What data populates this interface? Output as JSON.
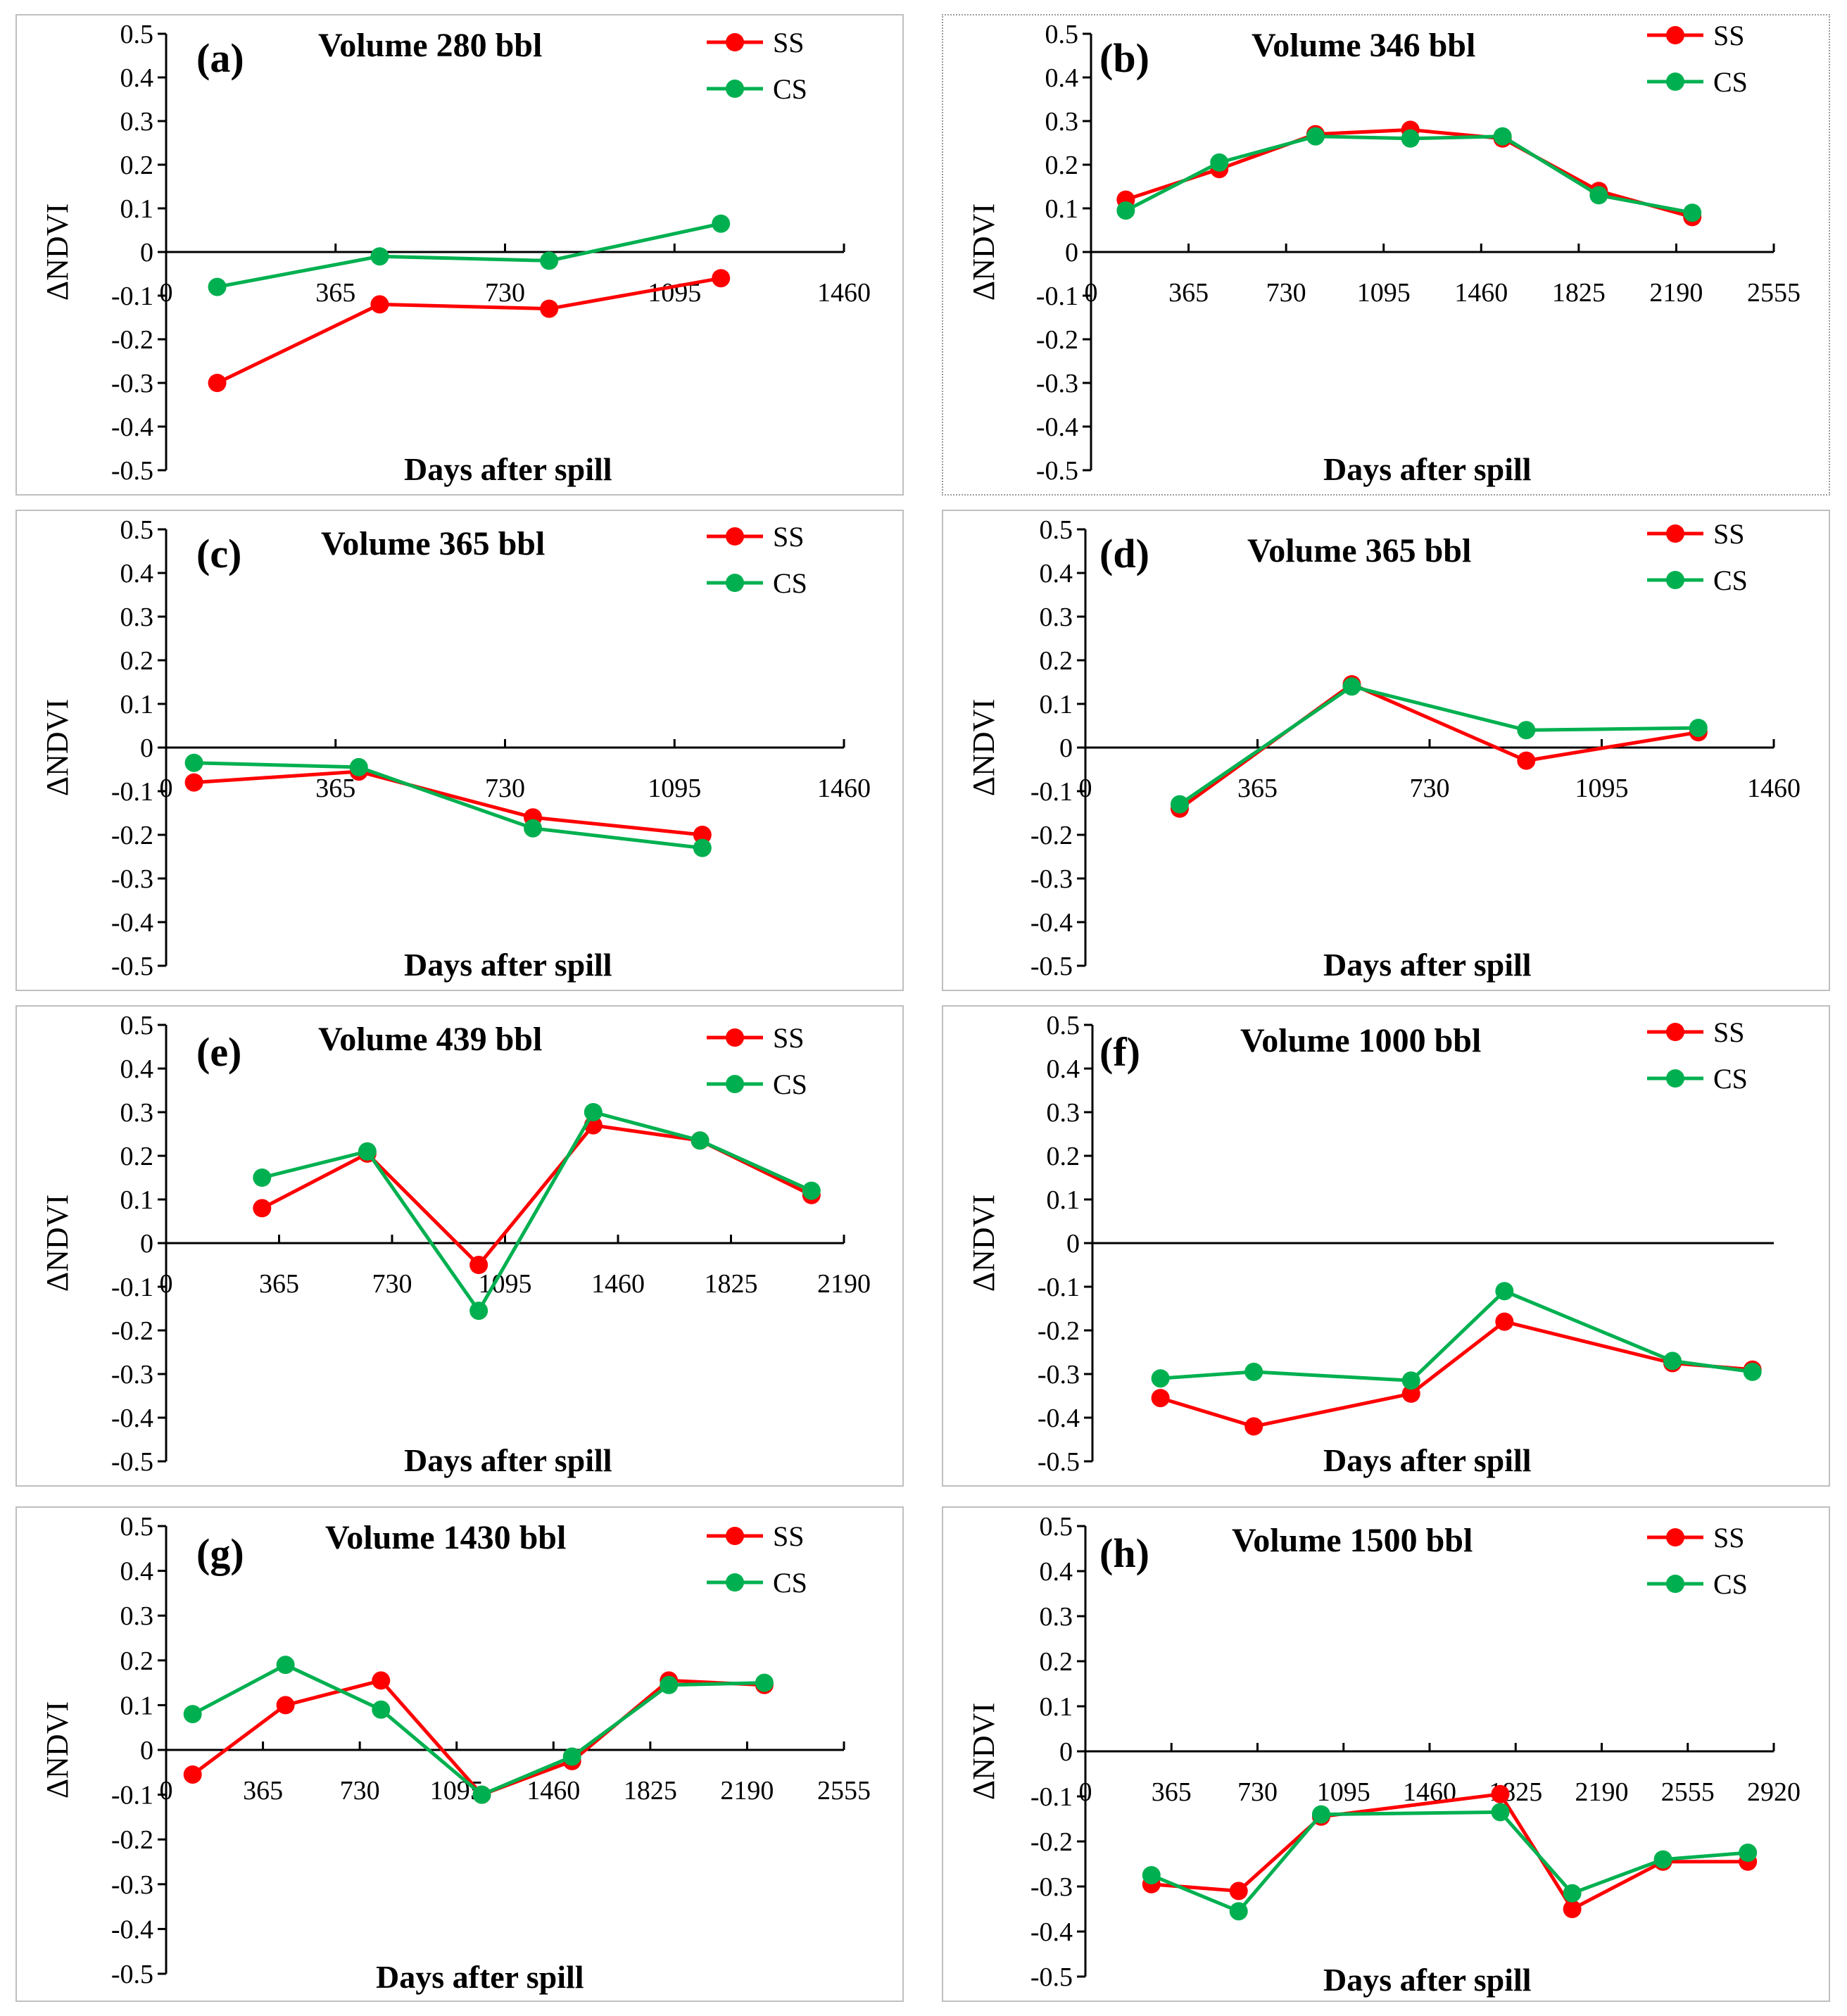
{
  "chart_data": [
    {
      "type": "line",
      "panel": "(a)",
      "title": "Volume 280 bbl",
      "xlabel": "Days after spill",
      "ylabel": "ΔNDVI",
      "xlim": [
        0,
        1460
      ],
      "ylim": [
        -0.5,
        0.5
      ],
      "xticks": [
        "0",
        "365",
        "730",
        "1095",
        "1460"
      ],
      "yticks": [
        "0.5",
        "0.4",
        "0.3",
        "0.2",
        "0.1",
        "0",
        "-0.1",
        "-0.2",
        "-0.3",
        "-0.4",
        "-0.5"
      ],
      "legend": "top-right",
      "series": [
        {
          "name": "SS",
          "color": "#ff0000",
          "x": [
            110,
            460,
            825,
            1195
          ],
          "y": [
            -0.3,
            -0.12,
            -0.13,
            -0.06
          ]
        },
        {
          "name": "CS",
          "color": "#00b050",
          "x": [
            110,
            460,
            825,
            1195
          ],
          "y": [
            -0.08,
            -0.01,
            -0.02,
            0.065
          ]
        }
      ]
    },
    {
      "type": "line",
      "panel": "(b)",
      "title": "Volume 346 bbl",
      "xlabel": "Days after spill",
      "ylabel": "ΔNDVI",
      "xlim": [
        0,
        2555
      ],
      "ylim": [
        -0.5,
        0.5
      ],
      "xticks": [
        "0",
        "365",
        "730",
        "1095",
        "1460",
        "1825",
        "2190",
        "2555"
      ],
      "yticks": [
        "0.5",
        "0.4",
        "0.3",
        "0.2",
        "0.1",
        "0",
        "-0.1",
        "-0.2",
        "-0.3",
        "-0.4",
        "-0.5"
      ],
      "legend": "top-right",
      "series": [
        {
          "name": "SS",
          "color": "#ff0000",
          "x": [
            130,
            480,
            840,
            1195,
            1540,
            1900,
            2250
          ],
          "y": [
            0.12,
            0.19,
            0.27,
            0.28,
            0.26,
            0.14,
            0.08
          ]
        },
        {
          "name": "CS",
          "color": "#00b050",
          "x": [
            130,
            480,
            840,
            1195,
            1540,
            1900,
            2250
          ],
          "y": [
            0.095,
            0.205,
            0.265,
            0.26,
            0.265,
            0.13,
            0.09
          ]
        }
      ]
    },
    {
      "type": "line",
      "panel": "(c)",
      "title": "Volume 365 bbl",
      "xlabel": "Days after spill",
      "ylabel": "ΔNDVI",
      "xlim": [
        0,
        1460
      ],
      "ylim": [
        -0.5,
        0.5
      ],
      "xticks": [
        "0",
        "365",
        "730",
        "1095",
        "1460"
      ],
      "yticks": [
        "0.5",
        "0.4",
        "0.3",
        "0.2",
        "0.1",
        "0",
        "-0.1",
        "-0.2",
        "-0.3",
        "-0.4",
        "-0.5"
      ],
      "legend": "top-right",
      "series": [
        {
          "name": "SS",
          "color": "#ff0000",
          "x": [
            60,
            415,
            790,
            1155
          ],
          "y": [
            -0.08,
            -0.055,
            -0.16,
            -0.2
          ]
        },
        {
          "name": "CS",
          "color": "#00b050",
          "x": [
            60,
            415,
            790,
            1155
          ],
          "y": [
            -0.035,
            -0.045,
            -0.185,
            -0.23
          ]
        }
      ]
    },
    {
      "type": "line",
      "panel": "(d)",
      "title": "Volume 365 bbl",
      "xlabel": "Days after spill",
      "ylabel": "ΔNDVI",
      "xlim": [
        0,
        1460
      ],
      "ylim": [
        -0.5,
        0.5
      ],
      "xticks": [
        "0",
        "365",
        "730",
        "1095",
        "1460"
      ],
      "yticks": [
        "0.5",
        "0.4",
        "0.3",
        "0.2",
        "0.1",
        "0",
        "-0.1",
        "-0.2",
        "-0.3",
        "-0.4",
        "-0.5"
      ],
      "legend": "top-right",
      "series": [
        {
          "name": "SS",
          "color": "#ff0000",
          "x": [
            200,
            565,
            935,
            1300
          ],
          "y": [
            -0.14,
            0.145,
            -0.03,
            0.035
          ]
        },
        {
          "name": "CS",
          "color": "#00b050",
          "x": [
            200,
            565,
            935,
            1300
          ],
          "y": [
            -0.13,
            0.14,
            0.04,
            0.045
          ]
        }
      ]
    },
    {
      "type": "line",
      "panel": "(e)",
      "title": "Volume 439 bbl",
      "xlabel": "Days after spill",
      "ylabel": "ΔNDVI",
      "xlim": [
        0,
        2190
      ],
      "ylim": [
        -0.5,
        0.5
      ],
      "xticks": [
        "0",
        "365",
        "730",
        "1095",
        "1460",
        "1825",
        "2190"
      ],
      "yticks": [
        "0.5",
        "0.4",
        "0.3",
        "0.2",
        "0.1",
        "0",
        "-0.1",
        "-0.2",
        "-0.3",
        "-0.4",
        "-0.5"
      ],
      "legend": "top-right",
      "series": [
        {
          "name": "SS",
          "color": "#ff0000",
          "x": [
            310,
            650,
            1010,
            1380,
            1725,
            2085
          ],
          "y": [
            0.08,
            0.205,
            -0.05,
            0.27,
            0.235,
            0.11
          ]
        },
        {
          "name": "CS",
          "color": "#00b050",
          "x": [
            310,
            650,
            1010,
            1380,
            1725,
            2085
          ],
          "y": [
            0.15,
            0.21,
            -0.155,
            0.3,
            0.235,
            0.12
          ]
        }
      ]
    },
    {
      "type": "line",
      "panel": "(f)",
      "title": "Volume 1000 bbl",
      "xlabel": "Days after spill",
      "ylabel": "ΔNDVI",
      "xlim": [
        0,
        2555
      ],
      "ylim": [
        -0.5,
        0.5
      ],
      "xticks": [],
      "yticks": [
        "0.5",
        "0.4",
        "0.3",
        "0.2",
        "0.1",
        "0",
        "-0.1",
        "-0.2",
        "-0.3",
        "-0.4",
        "-0.5"
      ],
      "legend": "top-right",
      "series": [
        {
          "name": "SS",
          "color": "#ff0000",
          "x": [
            255,
            605,
            1195,
            1545,
            2175,
            2475
          ],
          "y": [
            -0.355,
            -0.42,
            -0.345,
            -0.18,
            -0.275,
            -0.29
          ]
        },
        {
          "name": "CS",
          "color": "#00b050",
          "x": [
            255,
            605,
            1195,
            1545,
            2175,
            2475
          ],
          "y": [
            -0.31,
            -0.295,
            -0.315,
            -0.11,
            -0.27,
            -0.295
          ]
        }
      ]
    },
    {
      "type": "line",
      "panel": "(g)",
      "title": "Volume 1430 bbl",
      "xlabel": "Days after spill",
      "ylabel": "ΔNDVI",
      "xlim": [
        0,
        2555
      ],
      "ylim": [
        -0.5,
        0.5
      ],
      "xticks": [
        "0",
        "365",
        "730",
        "1095",
        "1460",
        "1825",
        "2190",
        "2555"
      ],
      "yticks": [
        "0.5",
        "0.4",
        "0.3",
        "0.2",
        "0.1",
        "0",
        "-0.1",
        "-0.2",
        "-0.3",
        "-0.4",
        "-0.5"
      ],
      "legend": "top-right",
      "series": [
        {
          "name": "SS",
          "color": "#ff0000",
          "x": [
            100,
            450,
            810,
            1190,
            1530,
            1895,
            2255
          ],
          "y": [
            -0.055,
            0.1,
            0.155,
            -0.1,
            -0.025,
            0.155,
            0.145
          ]
        },
        {
          "name": "CS",
          "color": "#00b050",
          "x": [
            100,
            450,
            810,
            1190,
            1530,
            1895,
            2255
          ],
          "y": [
            0.08,
            0.19,
            0.09,
            -0.1,
            -0.015,
            0.145,
            0.15
          ]
        }
      ]
    },
    {
      "type": "line",
      "panel": "(h)",
      "title": "Volume 1500 bbl",
      "xlabel": "Days after spill",
      "ylabel": "ΔNDVI",
      "xlim": [
        0,
        2920
      ],
      "ylim": [
        -0.5,
        0.5
      ],
      "xticks": [
        "0",
        "365",
        "730",
        "1095",
        "1460",
        "1825",
        "2190",
        "2555",
        "2920"
      ],
      "yticks": [
        "0.5",
        "0.4",
        "0.3",
        "0.2",
        "0.1",
        "0",
        "-0.1",
        "-0.2",
        "-0.3",
        "-0.4",
        "-0.5"
      ],
      "legend": "top-right",
      "series": [
        {
          "name": "SS",
          "color": "#ff0000",
          "x": [
            280,
            650,
            1000,
            1760,
            2065,
            2450,
            2810
          ],
          "y": [
            -0.295,
            -0.31,
            -0.145,
            -0.095,
            -0.35,
            -0.245,
            -0.245
          ]
        },
        {
          "name": "CS",
          "color": "#00b050",
          "x": [
            280,
            650,
            1000,
            1760,
            2065,
            2450,
            2810
          ],
          "y": [
            -0.275,
            -0.355,
            -0.14,
            -0.135,
            -0.315,
            -0.24,
            -0.225
          ]
        }
      ]
    }
  ]
}
